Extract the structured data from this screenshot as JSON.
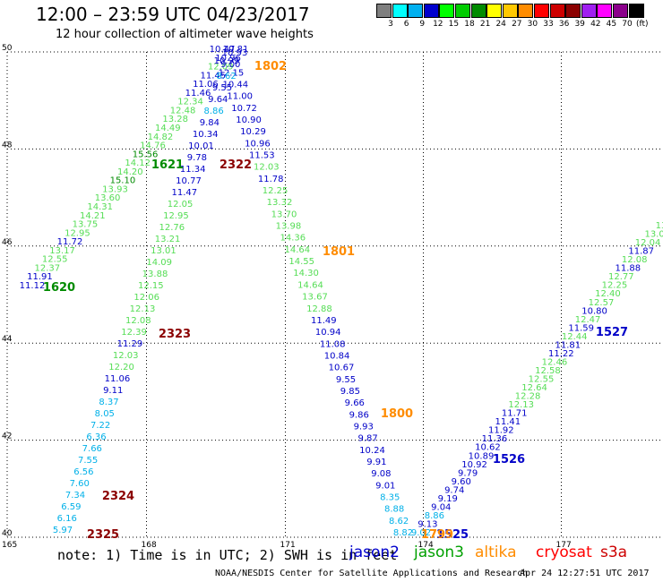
{
  "title": "12:00  –  23:59 UTC 04/23/2017",
  "subtitle": "12 hour collection of altimeter wave heights",
  "legend": {
    "unit": "(ft)",
    "bins": [
      {
        "color": "#7f7f7f",
        "label": "3"
      },
      {
        "color": "#00ffff",
        "label": "6"
      },
      {
        "color": "#00b0f0",
        "label": "9"
      },
      {
        "color": "#0000cd",
        "label": "12"
      },
      {
        "color": "#00ff00",
        "label": "15"
      },
      {
        "color": "#00cd00",
        "label": "18"
      },
      {
        "color": "#008b00",
        "label": "21"
      },
      {
        "color": "#ffff00",
        "label": "24"
      },
      {
        "color": "#ffc800",
        "label": "27"
      },
      {
        "color": "#ff8c00",
        "label": "30"
      },
      {
        "color": "#ff0000",
        "label": "33"
      },
      {
        "color": "#cd0000",
        "label": "36"
      },
      {
        "color": "#8b0000",
        "label": "39"
      },
      {
        "color": "#a020f0",
        "label": "42"
      },
      {
        "color": "#ff00ff",
        "label": "45"
      },
      {
        "color": "#8b008b",
        "label": "70"
      },
      {
        "color": "#000000",
        "label": ""
      }
    ]
  },
  "footnote": "note: 1) Time is in UTC; 2) SWH is in feet",
  "satellites": [
    {
      "name": "jason2",
      "color": "#0000cd"
    },
    {
      "name": "jason3",
      "color": "#00a000"
    },
    {
      "name": "altika",
      "color": "#ff8c00"
    },
    {
      "name": "cryosat",
      "color": "#ff0000"
    },
    {
      "name": "s3a",
      "color": "#cd0000"
    }
  ],
  "credit": "NOAA/NESDIS Center for Satellite Applications and Research",
  "timestamp": "Apr 24 12:27:51 UTC 2017",
  "chart_data": {
    "type": "scatter",
    "xlabel": "",
    "ylabel": "",
    "xlim": [
      165,
      179
    ],
    "ylim": [
      40,
      50
    ],
    "xticks": [
      165,
      168,
      171,
      174,
      177
    ],
    "yticks": [
      40,
      42,
      44,
      46,
      48,
      50
    ],
    "grid": true,
    "colors": {
      "ltgreen": "#55dd55",
      "cyan": "#00b0e8",
      "blue": "#0000c8",
      "dkgreen": "#008b00",
      "orange": "#ff8c00",
      "dkred": "#8b0000"
    },
    "track_labels": [
      {
        "text": "1802",
        "lon": 167.52,
        "lat": 49.75,
        "color": "orange"
      },
      {
        "text": "1621",
        "lon": 165.3,
        "lat": 47.7,
        "color": "dkgreen"
      },
      {
        "text": "2322",
        "lon": 166.98,
        "lat": 47.72,
        "color": "dkred"
      },
      {
        "text": "1801",
        "lon": 169.65,
        "lat": 46.1,
        "color": "orange"
      },
      {
        "text": "1620",
        "lon": 163.0,
        "lat": 45.45,
        "color": "dkgreen"
      },
      {
        "text": "2323",
        "lon": 165.48,
        "lat": 44.4,
        "color": "dkred"
      },
      {
        "text": "1527",
        "lon": 176.65,
        "lat": 44.45,
        "color": "blue"
      },
      {
        "text": "1800",
        "lon": 172.78,
        "lat": 42.7,
        "color": "orange"
      },
      {
        "text": "1526",
        "lon": 173.98,
        "lat": 41.65,
        "color": "blue"
      },
      {
        "text": "2324",
        "lon": 164.15,
        "lat": 40.85,
        "color": "dkred"
      },
      {
        "text": "2325",
        "lon": 163.65,
        "lat": 40.02,
        "color": "dkred"
      },
      {
        "text": "1525",
        "lon": 172.94,
        "lat": 40.02,
        "color": "blue"
      },
      {
        "text": "1799",
        "lon": 172.75,
        "lat": 40.02,
        "color": "orange"
      }
    ],
    "points": [
      {
        "lon": 165.0,
        "lat": 46.2,
        "v": "13.17",
        "c": "ltgreen"
      },
      {
        "lon": 165.0,
        "lat": 46.1,
        "v": "12.55",
        "c": "ltgreen"
      },
      {
        "lon": 165.0,
        "lat": 45.9,
        "v": "12.37",
        "c": "ltgreen"
      },
      {
        "lon": 165.0,
        "lat": 45.67,
        "v": "11.91",
        "c": "blue"
      },
      {
        "lon": 165.0,
        "lat": 45.52,
        "v": "11.12",
        "c": "blue"
      },
      {
        "lon": 165.0,
        "lat": 46.3,
        "v": "11.72",
        "c": "blue"
      },
      {
        "lon": 165.0,
        "lat": 46.45,
        "v": "13.75",
        "c": "ltgreen"
      },
      {
        "lon": 165.0,
        "lat": 46.6,
        "v": "14.21",
        "c": "ltgreen"
      },
      {
        "lon": 165.0,
        "lat": 46.8,
        "v": "14.31",
        "c": "ltgreen"
      },
      {
        "lon": 165.0,
        "lat": 47.0,
        "v": "13.60",
        "c": "ltgreen"
      },
      {
        "lon": 165.0,
        "lat": 47.2,
        "v": "13.93",
        "c": "ltgreen"
      },
      {
        "lon": 165.0,
        "lat": 47.4,
        "v": "15.10",
        "c": "dkgreen"
      },
      {
        "lon": 165.0,
        "lat": 47.55,
        "v": "14.20",
        "c": "ltgreen"
      },
      {
        "lon": 165.0,
        "lat": 47.75,
        "v": "14.12",
        "c": "ltgreen"
      },
      {
        "lon": 165.0,
        "lat": 47.9,
        "v": "15.56",
        "c": "dkgreen"
      },
      {
        "lon": 165.0,
        "lat": 48.05,
        "v": "14.76",
        "c": "ltgreen"
      },
      {
        "lon": 165.0,
        "lat": 48.22,
        "v": "14.82",
        "c": "ltgreen"
      },
      {
        "lon": 165.0,
        "lat": 48.4,
        "v": "14.49",
        "c": "ltgreen"
      },
      {
        "lon": 165.0,
        "lat": 48.58,
        "v": "13.28",
        "c": "ltgreen"
      },
      {
        "lon": 165.0,
        "lat": 48.75,
        "v": "12.48",
        "c": "ltgreen"
      },
      {
        "lon": 165.0,
        "lat": 48.95,
        "v": "12.34",
        "c": "ltgreen"
      },
      {
        "lon": 165.0,
        "lat": 49.12,
        "v": "11.46",
        "c": "blue"
      },
      {
        "lon": 165.0,
        "lat": 49.3,
        "v": "11.06",
        "c": "blue"
      },
      {
        "lon": 165.0,
        "lat": 49.48,
        "v": "11.45",
        "c": "blue"
      },
      {
        "lon": 165.0,
        "lat": 49.65,
        "v": "12.09",
        "c": "ltgreen"
      },
      {
        "lon": 165.0,
        "lat": 49.82,
        "v": "10.96",
        "c": "blue"
      },
      {
        "lon": 165.0,
        "lat": 49.9,
        "v": "10.99",
        "c": "blue"
      },
      {
        "lon": 165.0,
        "lat": 50.0,
        "v": "10.81",
        "c": "blue"
      },
      {
        "lon": 165.0,
        "lat": 49.7,
        "v": "12.15",
        "c": "blue"
      },
      {
        "lon": 165.0,
        "lat": 49.55,
        "v": "9.00",
        "c": "blue"
      },
      {
        "lon": 165.0,
        "lat": 49.38,
        "v": "8.62",
        "c": "cyan"
      },
      {
        "lon": 165.0,
        "lat": 49.2,
        "v": "9.55",
        "c": "blue"
      },
      {
        "lon": 165.0,
        "lat": 49.0,
        "v": "9.64",
        "c": "blue"
      },
      {
        "lon": 165.0,
        "lat": 48.82,
        "v": "8.86",
        "c": "cyan"
      },
      {
        "lon": 165.0,
        "lat": 48.6,
        "v": "9.84",
        "c": "blue"
      },
      {
        "lon": 165.0,
        "lat": 48.45,
        "v": "10.34",
        "c": "blue"
      },
      {
        "lon": 165.0,
        "lat": 48.3,
        "v": "10.01",
        "c": "blue"
      },
      {
        "lon": 165.0,
        "lat": 48.12,
        "v": "9.78",
        "c": "blue"
      },
      {
        "lon": 165.0,
        "lat": 47.92,
        "v": "11.34",
        "c": "blue"
      },
      {
        "lon": 165.0,
        "lat": 47.72,
        "v": "10.77",
        "c": "blue"
      },
      {
        "lon": 165.0,
        "lat": 47.52,
        "v": "11.47",
        "c": "blue"
      },
      {
        "lon": 165.0,
        "lat": 47.35,
        "v": "12.05",
        "c": "ltgreen"
      },
      {
        "lon": 165.0,
        "lat": 47.18,
        "v": "12.95",
        "c": "ltgreen"
      },
      {
        "lon": 165.0,
        "lat": 47.0,
        "v": "12.76",
        "c": "ltgreen"
      },
      {
        "lon": 165.0,
        "lat": 46.82,
        "v": "13.21",
        "c": "ltgreen"
      },
      {
        "lon": 165.0,
        "lat": 46.62,
        "v": "13.01",
        "c": "ltgreen"
      },
      {
        "lon": 165.0,
        "lat": 46.45,
        "v": "14.09",
        "c": "ltgreen"
      },
      {
        "lon": 165.0,
        "lat": 46.25,
        "v": "13.88",
        "c": "ltgreen"
      },
      {
        "lon": 165.0,
        "lat": 46.08,
        "v": "12.15",
        "c": "ltgreen"
      },
      {
        "lon": 165.0,
        "lat": 45.88,
        "v": "12.06",
        "c": "ltgreen"
      },
      {
        "lon": 165.0,
        "lat": 45.7,
        "v": "12.13",
        "c": "ltgreen"
      },
      {
        "lon": 165.0,
        "lat": 45.5,
        "v": "12.08",
        "c": "ltgreen"
      },
      {
        "lon": 165.0,
        "lat": 45.3,
        "v": "12.39",
        "c": "ltgreen"
      },
      {
        "lon": 165.0,
        "lat": 45.12,
        "v": "11.29",
        "c": "blue"
      },
      {
        "lon": 165.0,
        "lat": 44.95,
        "v": "12.03",
        "c": "ltgreen"
      },
      {
        "lon": 165.0,
        "lat": 44.75,
        "v": "12.20",
        "c": "ltgreen"
      },
      {
        "lon": 165.0,
        "lat": 44.55,
        "v": "11.06",
        "c": "blue"
      },
      {
        "lon": 165.0,
        "lat": 44.35,
        "v": "9.11",
        "c": "blue"
      },
      {
        "lon": 165.0,
        "lat": 44.18,
        "v": "8.37",
        "c": "cyan"
      },
      {
        "lon": 165.0,
        "lat": 44.0,
        "v": "8.05",
        "c": "cyan"
      },
      {
        "lon": 165.0,
        "lat": 43.8,
        "v": "7.22",
        "c": "cyan"
      },
      {
        "lon": 165.0,
        "lat": 43.62,
        "v": "6.36",
        "c": "cyan"
      },
      {
        "lon": 165.0,
        "lat": 43.42,
        "v": "7.66",
        "c": "cyan"
      },
      {
        "lon": 165.0,
        "lat": 43.22,
        "v": "7.55",
        "c": "cyan"
      },
      {
        "lon": 165.0,
        "lat": 43.02,
        "v": "6.56",
        "c": "cyan"
      },
      {
        "lon": 165.0,
        "lat": 42.92,
        "v": "7.60",
        "c": "cyan"
      },
      {
        "lon": 165.0,
        "lat": 42.82,
        "v": "7.34",
        "c": "cyan"
      },
      {
        "lon": 165.0,
        "lat": 42.62,
        "v": "6.59",
        "c": "cyan"
      },
      {
        "lon": 165.0,
        "lat": 42.42,
        "v": "6.16",
        "c": "cyan"
      },
      {
        "lon": 165.0,
        "lat": 42.22,
        "v": "5.97",
        "c": "cyan"
      }
    ]
  }
}
